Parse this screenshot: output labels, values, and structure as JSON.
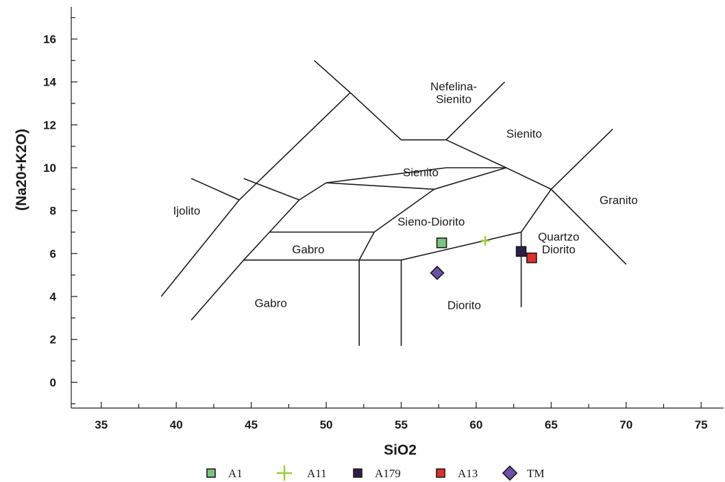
{
  "chart_data": {
    "type": "scatter",
    "xlabel": "SiO2",
    "ylabel": "(Na20+K2O)",
    "xlim": [
      33,
      76.5
    ],
    "ylim": [
      -1.2,
      17.5
    ],
    "x_ticks": [
      35,
      40,
      45,
      50,
      55,
      60,
      65,
      70,
      75
    ],
    "y_ticks": [
      0,
      2,
      4,
      6,
      8,
      10,
      12,
      14,
      16
    ],
    "x_tick_labels": [
      "35",
      "40",
      "45",
      "50",
      "55",
      "60",
      "65",
      "70",
      "75"
    ],
    "y_tick_labels": [
      "0",
      "2",
      "4",
      "6",
      "8",
      "10",
      "12",
      "14",
      "16"
    ],
    "legend_position": "bottom",
    "grid": false,
    "boundaries": [
      [
        [
          39,
          4.0
        ],
        [
          44.2,
          8.5
        ],
        [
          51.6,
          13.5
        ]
      ],
      [
        [
          41,
          2.9
        ],
        [
          44.5,
          5.7
        ],
        [
          48.2,
          8.5
        ],
        [
          50.0,
          9.3
        ],
        [
          58.0,
          10.0
        ],
        [
          62,
          10.0
        ],
        [
          65,
          9.0
        ],
        [
          69.1,
          11.8
        ]
      ],
      [
        [
          41,
          9.5
        ],
        [
          44.2,
          8.5
        ]
      ],
      [
        [
          44.5,
          9.5
        ],
        [
          48.2,
          8.5
        ]
      ],
      [
        [
          49.2,
          15.0
        ],
        [
          51.6,
          13.5
        ],
        [
          55.0,
          11.3
        ],
        [
          58.0,
          11.3
        ],
        [
          61.9,
          14.0
        ]
      ],
      [
        [
          58.0,
          11.3
        ],
        [
          62,
          10.0
        ]
      ],
      [
        [
          50.0,
          9.3
        ],
        [
          57.2,
          9.0
        ],
        [
          62,
          10.0
        ]
      ],
      [
        [
          57.2,
          9.0
        ],
        [
          53.2,
          7.0
        ],
        [
          52.2,
          5.7
        ]
      ],
      [
        [
          46.2,
          7.0
        ],
        [
          53.2,
          7.0
        ]
      ],
      [
        [
          44.5,
          5.7
        ],
        [
          52.2,
          5.7
        ],
        [
          52.2,
          1.7
        ]
      ],
      [
        [
          52.2,
          5.7
        ],
        [
          55.0,
          5.7
        ],
        [
          55.0,
          1.7
        ]
      ],
      [
        [
          55.0,
          5.7
        ],
        [
          63.0,
          7.0
        ],
        [
          65,
          9.0
        ],
        [
          70,
          5.5
        ]
      ],
      [
        [
          63.0,
          7.0
        ],
        [
          63.0,
          3.5
        ]
      ]
    ],
    "region_labels": [
      {
        "text": "Ijolito",
        "x": 40.7,
        "y": 8.0
      },
      {
        "text": "Nefelina-",
        "x": 58.5,
        "y": 13.8
      },
      {
        "text": "Sienito",
        "x": 58.5,
        "y": 13.2
      },
      {
        "text": "Sienito",
        "x": 63.2,
        "y": 11.6
      },
      {
        "text": "Sienito",
        "x": 56.3,
        "y": 9.8
      },
      {
        "text": "Granito",
        "x": 69.5,
        "y": 8.5
      },
      {
        "text": "Sieno-Diorito",
        "x": 57.0,
        "y": 7.5
      },
      {
        "text": "Quartzo",
        "x": 65.5,
        "y": 6.8
      },
      {
        "text": "Diorito",
        "x": 65.5,
        "y": 6.2
      },
      {
        "text": "Gabro",
        "x": 48.8,
        "y": 6.2
      },
      {
        "text": "Gabro",
        "x": 46.3,
        "y": 3.7
      },
      {
        "text": "Diorito",
        "x": 59.2,
        "y": 3.6
      }
    ],
    "series": [
      {
        "name": "A1",
        "marker": "square",
        "color": "#7cc47f",
        "x": [
          57.7
        ],
        "y": [
          6.5
        ]
      },
      {
        "name": "A11",
        "marker": "plus",
        "color": "#9acd32",
        "x": [
          60.6
        ],
        "y": [
          6.6
        ]
      },
      {
        "name": "A179",
        "marker": "square",
        "color": "#2e1f4a",
        "x": [
          63.0
        ],
        "y": [
          6.1
        ]
      },
      {
        "name": "A13",
        "marker": "square",
        "color": "#e0302a",
        "x": [
          63.7
        ],
        "y": [
          5.8
        ]
      },
      {
        "name": "TM",
        "marker": "diamond",
        "color": "#6b4fa8",
        "x": [
          57.4
        ],
        "y": [
          5.1
        ]
      }
    ]
  }
}
